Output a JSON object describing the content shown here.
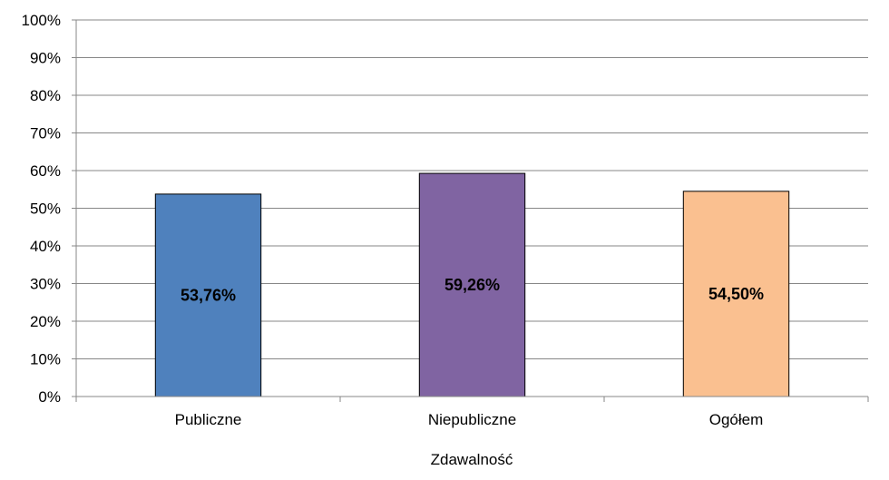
{
  "chart_data": {
    "type": "bar",
    "categories": [
      "Publiczne",
      "Niepubliczne",
      "Ogółem"
    ],
    "values": [
      53.76,
      59.26,
      54.5
    ],
    "data_labels": [
      "53,76%",
      "59,26%",
      "54,50%"
    ],
    "colors": [
      "#4f81bd",
      "#8064a2",
      "#fac090"
    ],
    "xlabel": "Zdawalność",
    "ylabel": "",
    "ylim": [
      0,
      100
    ],
    "yticks": [
      0,
      10,
      20,
      30,
      40,
      50,
      60,
      70,
      80,
      90,
      100
    ],
    "ytick_labels": [
      "0%",
      "10%",
      "20%",
      "30%",
      "40%",
      "50%",
      "60%",
      "70%",
      "80%",
      "90%",
      "100%"
    ],
    "grid": true,
    "legend": "none"
  }
}
